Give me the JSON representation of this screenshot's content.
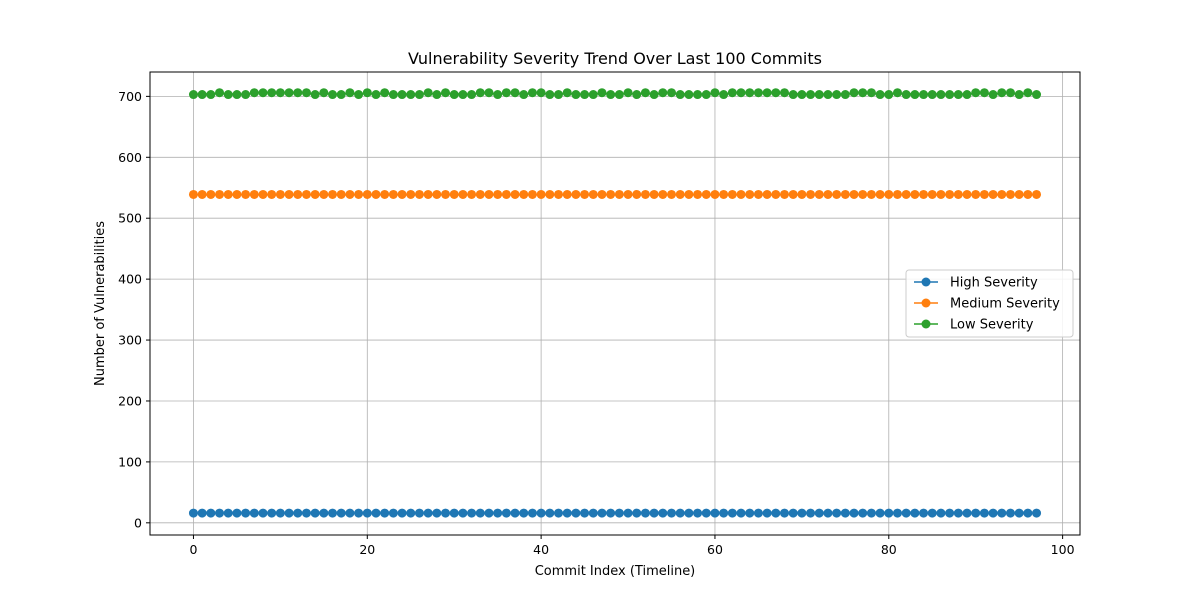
{
  "chart_data": {
    "type": "line",
    "title": "Vulnerability Severity Trend Over Last 100 Commits",
    "xlabel": "Commit Index (Timeline)",
    "ylabel": "Number of Vulnerabilities",
    "xlim": [
      -5,
      102
    ],
    "ylim": [
      -20,
      740
    ],
    "xticks": [
      0,
      20,
      40,
      60,
      80,
      100
    ],
    "yticks": [
      0,
      100,
      200,
      300,
      400,
      500,
      600,
      700
    ],
    "grid": true,
    "legend_position": "center-right",
    "series": [
      {
        "name": "High Severity",
        "color": "#1f77b4",
        "marker": "circle",
        "x_start": 0,
        "x_end": 97,
        "values": [
          16,
          16,
          16,
          16,
          16,
          16,
          16,
          16,
          16,
          16,
          16,
          16,
          16,
          16,
          16,
          16,
          16,
          16,
          16,
          16,
          16,
          16,
          16,
          16,
          16,
          16,
          16,
          16,
          16,
          16,
          16,
          16,
          16,
          16,
          16,
          16,
          16,
          16,
          16,
          16,
          16,
          16,
          16,
          16,
          16,
          16,
          16,
          16,
          16,
          16,
          16,
          16,
          16,
          16,
          16,
          16,
          16,
          16,
          16,
          16,
          16,
          16,
          16,
          16,
          16,
          16,
          16,
          16,
          16,
          16,
          16,
          16,
          16,
          16,
          16,
          16,
          16,
          16,
          16,
          16,
          16,
          16,
          16,
          16,
          16,
          16,
          16,
          16,
          16,
          16,
          16,
          16,
          16,
          16,
          16,
          16,
          16,
          16
        ]
      },
      {
        "name": "Medium Severity",
        "color": "#ff7f0e",
        "marker": "circle",
        "x_start": 0,
        "x_end": 97,
        "values": [
          539,
          539,
          539,
          539,
          539,
          539,
          539,
          539,
          539,
          539,
          539,
          539,
          539,
          539,
          539,
          539,
          539,
          539,
          539,
          539,
          539,
          539,
          539,
          539,
          539,
          539,
          539,
          539,
          539,
          539,
          539,
          539,
          539,
          539,
          539,
          539,
          539,
          539,
          539,
          539,
          539,
          539,
          539,
          539,
          539,
          539,
          539,
          539,
          539,
          539,
          539,
          539,
          539,
          539,
          539,
          539,
          539,
          539,
          539,
          539,
          539,
          539,
          539,
          539,
          539,
          539,
          539,
          539,
          539,
          539,
          539,
          539,
          539,
          539,
          539,
          539,
          539,
          539,
          539,
          539,
          539,
          539,
          539,
          539,
          539,
          539,
          539,
          539,
          539,
          539,
          539,
          539,
          539,
          539,
          539,
          539,
          539,
          539
        ]
      },
      {
        "name": "Low Severity",
        "color": "#2ca02c",
        "marker": "circle",
        "x_start": 0,
        "x_end": 97,
        "values": [
          703,
          703,
          703,
          706,
          703,
          703,
          703,
          706,
          706,
          706,
          706,
          706,
          706,
          706,
          703,
          706,
          703,
          703,
          706,
          703,
          706,
          703,
          706,
          703,
          703,
          703,
          703,
          706,
          703,
          706,
          703,
          703,
          703,
          706,
          706,
          703,
          706,
          706,
          703,
          706,
          706,
          703,
          703,
          706,
          703,
          703,
          703,
          706,
          703,
          703,
          706,
          703,
          706,
          703,
          706,
          706,
          703,
          703,
          703,
          703,
          706,
          703,
          706,
          706,
          706,
          706,
          706,
          706,
          706,
          703,
          703,
          703,
          703,
          703,
          703,
          703,
          706,
          706,
          706,
          703,
          703,
          706,
          703,
          703,
          703,
          703,
          703,
          703,
          703,
          703,
          706,
          706,
          703,
          706,
          706,
          703,
          706,
          703
        ]
      }
    ]
  }
}
